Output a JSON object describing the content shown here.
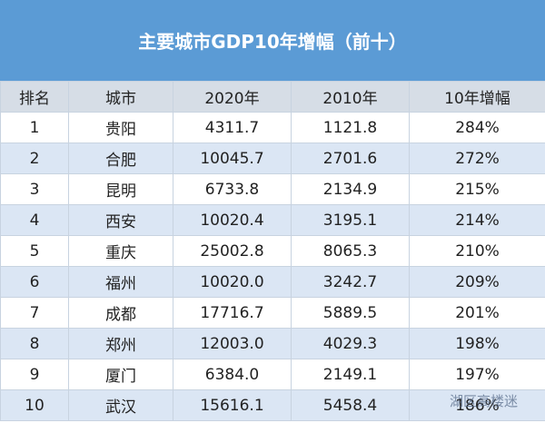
{
  "header": {
    "title": "主要城市GDP10年增幅（前十）"
  },
  "table": {
    "columns": [
      "排名",
      "城市",
      "2020年",
      "2010年",
      "10年增幅"
    ],
    "rows": [
      [
        "1",
        "贵阳",
        "4311.7",
        "1121.8",
        "284%"
      ],
      [
        "2",
        "合肥",
        "10045.7",
        "2701.6",
        "272%"
      ],
      [
        "3",
        "昆明",
        "6733.8",
        "2134.9",
        "215%"
      ],
      [
        "4",
        "西安",
        "10020.4",
        "3195.1",
        "214%"
      ],
      [
        "5",
        "重庆",
        "25002.8",
        "8065.3",
        "210%"
      ],
      [
        "6",
        "福州",
        "10020.0",
        "3242.7",
        "209%"
      ],
      [
        "7",
        "成都",
        "17716.7",
        "5889.5",
        "201%"
      ],
      [
        "8",
        "郑州",
        "12003.0",
        "4029.3",
        "198%"
      ],
      [
        "9",
        "厦门",
        "6384.0",
        "2149.1",
        "197%"
      ],
      [
        "10",
        "武汉",
        "15616.1",
        "5458.4",
        "186%"
      ]
    ]
  },
  "watermark": "湖区高楼迷"
}
